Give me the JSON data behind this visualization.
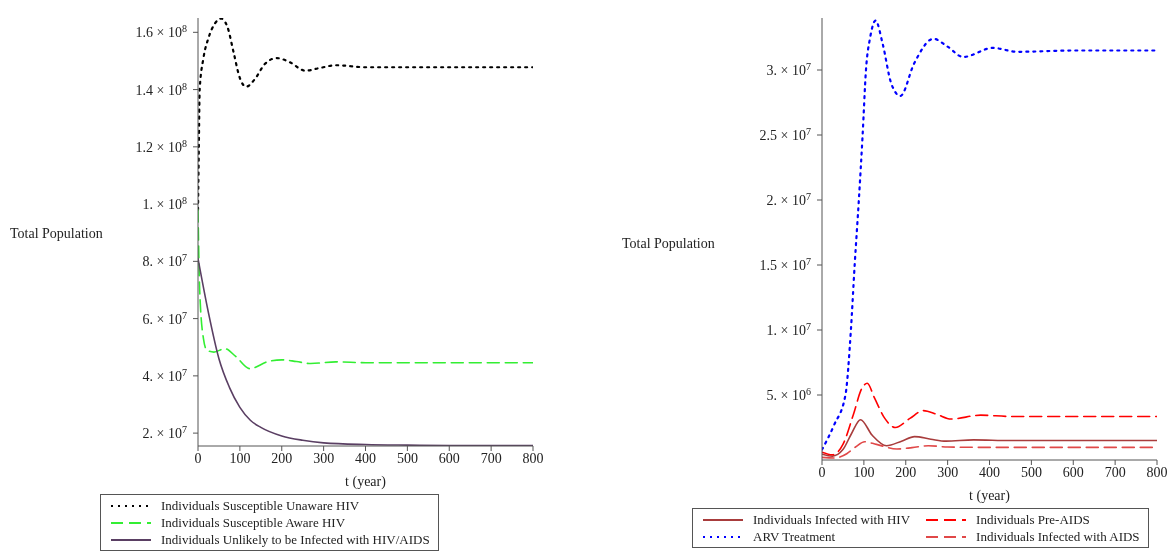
{
  "chart_data": [
    {
      "type": "line",
      "xlabel": "t (year)",
      "ylabel": "Total Population",
      "xlim": [
        0,
        800
      ],
      "xticks": [
        0,
        100,
        200,
        300,
        400,
        500,
        600,
        700,
        800
      ],
      "ylim": [
        15500000,
        165000000
      ],
      "yticks": [
        {
          "value": 20000000,
          "label": "2. × 10$^{7}$"
        },
        {
          "value": 40000000,
          "label": "4. × 10$^{7}$"
        },
        {
          "value": 60000000,
          "label": "6. × 10$^{7}$"
        },
        {
          "value": 80000000,
          "label": "8. × 10$^{7}$"
        },
        {
          "value": 100000000,
          "label": "1. × 10$^{8}$"
        },
        {
          "value": 120000000,
          "label": "1.2 × 10$^{8}$"
        },
        {
          "value": 140000000,
          "label": "1.4 × 10$^{8}$"
        },
        {
          "value": 160000000,
          "label": "1.6 × 10$^{8}$"
        }
      ],
      "legend": "bottom",
      "marker": "none",
      "series": [
        {
          "name": "Individuals Susceptible Unaware HIV",
          "color": "#000000",
          "line_style": "dotted",
          "x": [
            0,
            2,
            4,
            13,
            25,
            40,
            55,
            70,
            85,
            100,
            115,
            135,
            160,
            188,
            220,
            256,
            290,
            329,
            400,
            500,
            600,
            700,
            800
          ],
          "values": [
            98000000,
            120000000,
            140000000,
            151000000,
            158000000,
            163000000,
            164800000,
            162000000,
            153000000,
            144000000,
            141000000,
            143500000,
            149000000,
            151000000,
            149500000,
            146600000,
            147500000,
            148500000,
            147800000,
            147800000,
            147800000,
            147800000,
            147800000
          ]
        },
        {
          "name": "Individuals Susceptible Aware HIV",
          "color": "#33ee33",
          "line_style": "dashed",
          "x": [
            0,
            4,
            13,
            21,
            38,
            64,
            90,
            124,
            167,
            200,
            235,
            269,
            329,
            400,
            500,
            600,
            700,
            800
          ],
          "values": [
            98000000,
            70000000,
            53000000,
            49000000,
            48300000,
            49500000,
            46800000,
            42500000,
            45000000,
            45600000,
            45000000,
            44300000,
            44900000,
            44600000,
            44600000,
            44600000,
            44600000,
            44600000
          ]
        },
        {
          "name": "Individuals Unlikely to be Infected with HIV/AIDS",
          "color": "#5a3f63",
          "line_style": "solid",
          "x": [
            0,
            25,
            50,
            75,
            100,
            125,
            150,
            200,
            250,
            300,
            400,
            500,
            600,
            700,
            800
          ],
          "values": [
            81000000,
            62000000,
            46000000,
            36000000,
            29000000,
            24500000,
            22000000,
            19000000,
            17500000,
            16600000,
            16000000,
            15800000,
            15700000,
            15700000,
            15700000
          ]
        }
      ]
    },
    {
      "type": "line",
      "xlabel": "t (year)",
      "ylabel": "Total Population",
      "xlim": [
        0,
        800
      ],
      "xticks": [
        0,
        100,
        200,
        300,
        400,
        500,
        600,
        700,
        800
      ],
      "ylim": [
        0,
        34000000
      ],
      "yticks": [
        {
          "value": 5000000,
          "label": "5. × 10$^{6}$"
        },
        {
          "value": 10000000,
          "label": "1. × 10$^{7}$"
        },
        {
          "value": 15000000,
          "label": "1.5 × 10$^{7}$"
        },
        {
          "value": 20000000,
          "label": "2. × 10$^{7}$"
        },
        {
          "value": 25000000,
          "label": "2.5 × 10$^{7}$"
        },
        {
          "value": 30000000,
          "label": "3. × 10$^{7}$"
        }
      ],
      "legend": "bottom",
      "marker": "none",
      "series": [
        {
          "name": "Individuals Infected with HIV",
          "color": "#a83c3c",
          "line_style": "solid",
          "x": [
            0,
            25,
            50,
            70,
            92,
            120,
            154,
            190,
            221,
            260,
            296,
            362,
            450,
            600,
            800
          ],
          "values": [
            450000,
            300000,
            800000,
            2000000,
            3100000,
            1900000,
            1100000,
            1450000,
            1800000,
            1600000,
            1450000,
            1550000,
            1500000,
            1500000,
            1500000
          ]
        },
        {
          "name": "ARV Treatment",
          "color": "#0000ff",
          "line_style": "dotted",
          "x": [
            0,
            29,
            56,
            69,
            78,
            88,
            97,
            105,
            115,
            128,
            145,
            165,
            187,
            220,
            266,
            300,
            337,
            408,
            466,
            600,
            800
          ],
          "values": [
            800000,
            2700000,
            5000000,
            10000000,
            15000000,
            20000000,
            25000000,
            30000000,
            32500000,
            33800000,
            32000000,
            29000000,
            28000000,
            30500000,
            32400000,
            31800000,
            31000000,
            31700000,
            31400000,
            31500000,
            31500000
          ]
        },
        {
          "name": "Individuals Pre-AIDS",
          "color": "#ff0000",
          "line_style": "dashed",
          "x": [
            0,
            25,
            50,
            75,
            95,
            108,
            125,
            150,
            175,
            210,
            242,
            275,
            308,
            379,
            450,
            600,
            800
          ],
          "values": [
            600000,
            400000,
            1200000,
            3500000,
            5500000,
            5900000,
            4800000,
            3200000,
            2500000,
            3200000,
            3800000,
            3500000,
            3150000,
            3450000,
            3350000,
            3350000,
            3350000
          ]
        },
        {
          "name": "Individuals Infected with AIDS",
          "color": "#e04848",
          "line_style": "dashed",
          "x": [
            0,
            30,
            60,
            80,
            102,
            130,
            179,
            215,
            254,
            300,
            400,
            600,
            800
          ],
          "values": [
            200000,
            150000,
            500000,
            1000000,
            1400000,
            1200000,
            850000,
            950000,
            1100000,
            1000000,
            970000,
            970000,
            970000
          ]
        }
      ]
    }
  ]
}
